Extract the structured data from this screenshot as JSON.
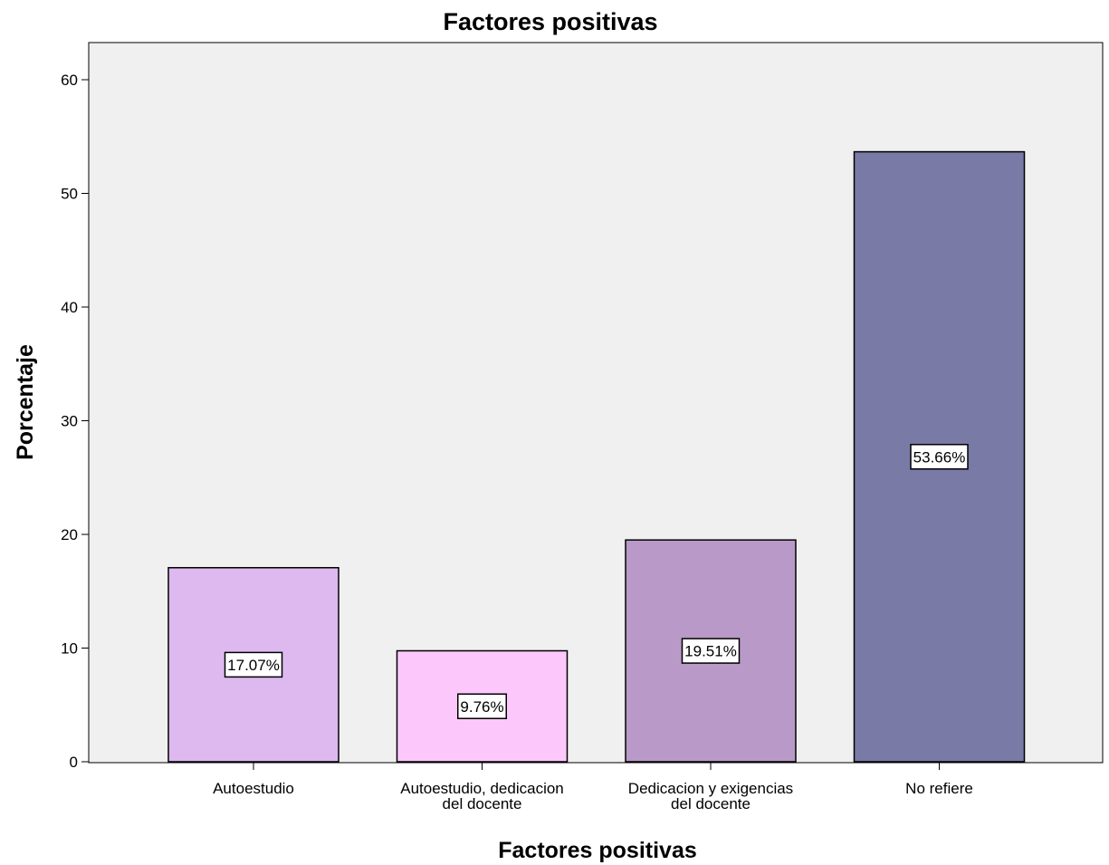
{
  "chart_data": {
    "type": "bar",
    "title": "Factores positivas",
    "xlabel": "Factores positivas",
    "ylabel": "Porcentaje",
    "categories": [
      [
        "Autoestudio"
      ],
      [
        "Autoestudio, dedicacion",
        "del docente"
      ],
      [
        "Dedicacion y exigencias",
        "del docente"
      ],
      [
        "No refiere"
      ]
    ],
    "values": [
      17.07,
      9.76,
      19.51,
      53.66
    ],
    "data_labels": [
      "17.07%",
      "9.76%",
      "19.51%",
      "53.66%"
    ],
    "colors": [
      "#DDB9F0",
      "#FCC8FC",
      "#B999C7",
      "#7A7AA7"
    ],
    "ylim": [
      0,
      63
    ],
    "yticks": [
      0,
      10,
      20,
      30,
      40,
      50,
      60
    ],
    "grid": false,
    "legend": "none",
    "plot_background": "#F0F0F0"
  }
}
